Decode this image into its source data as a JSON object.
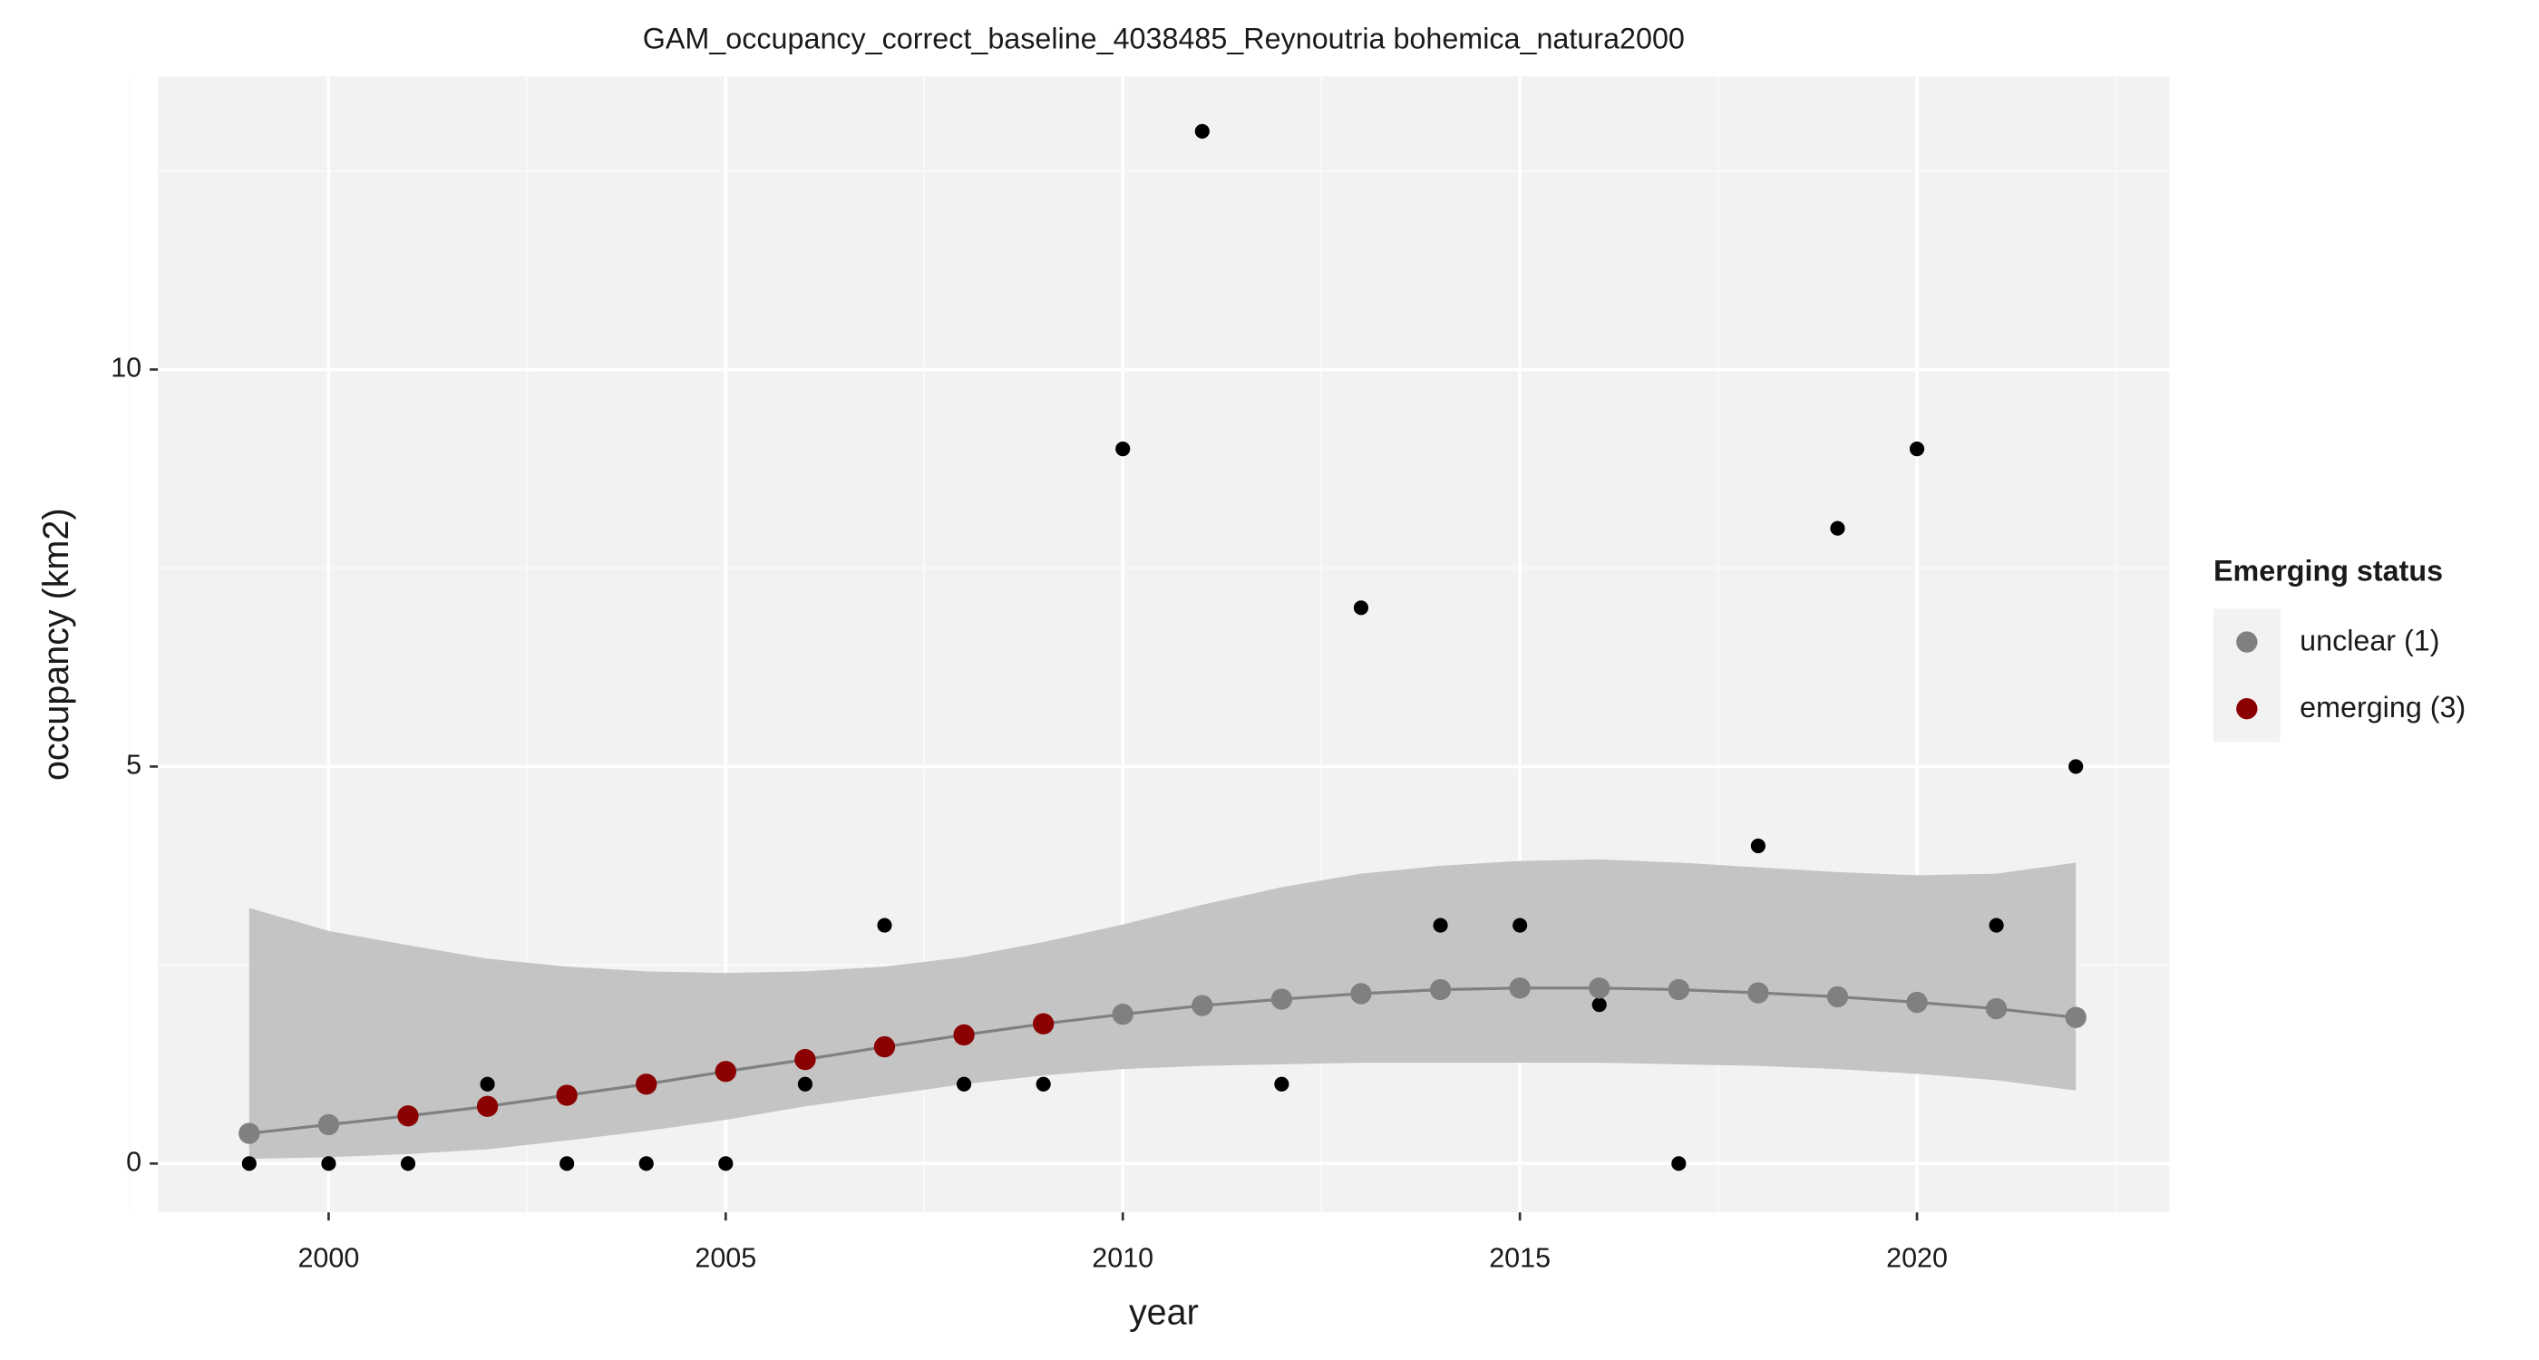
{
  "chart_data": {
    "type": "scatter",
    "title": "GAM_occupancy_correct_baseline_4038485_Reynoutria bohemica_natura2000",
    "x_label": "year",
    "y_label": "occupancy (km2)",
    "x": [
      1999,
      2000,
      2001,
      2002,
      2003,
      2004,
      2005,
      2006,
      2007,
      2008,
      2009,
      2010,
      2011,
      2012,
      2013,
      2014,
      2015,
      2016,
      2017,
      2018,
      2019,
      2020,
      2021,
      2022
    ],
    "observed": [
      0,
      0,
      0,
      1,
      0,
      0,
      0,
      1,
      3,
      1,
      1,
      9,
      13,
      1,
      7,
      3,
      3,
      2,
      0,
      4,
      8,
      9,
      3,
      5
    ],
    "observed_color": "#000000",
    "fitted": [
      0.38,
      0.49,
      0.6,
      0.72,
      0.86,
      1.0,
      1.16,
      1.31,
      1.47,
      1.62,
      1.76,
      1.88,
      1.99,
      2.07,
      2.14,
      2.19,
      2.21,
      2.21,
      2.19,
      2.15,
      2.1,
      2.03,
      1.95,
      1.84
    ],
    "fitted_colors": [
      "#808080",
      "#808080",
      "#8b0000",
      "#8b0000",
      "#8b0000",
      "#8b0000",
      "#8b0000",
      "#8b0000",
      "#8b0000",
      "#8b0000",
      "#8b0000",
      "#808080",
      "#808080",
      "#808080",
      "#808080",
      "#808080",
      "#808080",
      "#808080",
      "#808080",
      "#808080",
      "#808080",
      "#808080",
      "#808080",
      "#808080"
    ],
    "line_color": "#808080",
    "band_upper": [
      3.22,
      2.93,
      2.75,
      2.58,
      2.48,
      2.42,
      2.4,
      2.42,
      2.48,
      2.6,
      2.79,
      3.01,
      3.26,
      3.48,
      3.65,
      3.75,
      3.81,
      3.83,
      3.79,
      3.73,
      3.67,
      3.63,
      3.65,
      3.79
    ],
    "band_lower": [
      0.06,
      0.08,
      0.12,
      0.18,
      0.29,
      0.41,
      0.55,
      0.72,
      0.86,
      1.0,
      1.11,
      1.19,
      1.23,
      1.25,
      1.27,
      1.27,
      1.27,
      1.27,
      1.25,
      1.23,
      1.19,
      1.13,
      1.05,
      0.92
    ],
    "band_color": "#c4c4c4",
    "xlim": [
      1997.85,
      2023.18
    ],
    "ylim": [
      -0.615,
      13.69
    ],
    "xticks": [
      2000,
      2005,
      2010,
      2015,
      2020
    ],
    "yticks": [
      0,
      5,
      10
    ],
    "xminor": [
      1997.5,
      2002.5,
      2007.5,
      2012.5,
      2017.5,
      2022.5
    ],
    "yminor": [
      2.5,
      7.5,
      12.5
    ],
    "grid": true,
    "legend": {
      "title": "Emerging status",
      "position": "right",
      "items": [
        {
          "label": "unclear (1)",
          "color": "#808080"
        },
        {
          "label": "emerging (3)",
          "color": "#8b0000"
        }
      ]
    }
  }
}
